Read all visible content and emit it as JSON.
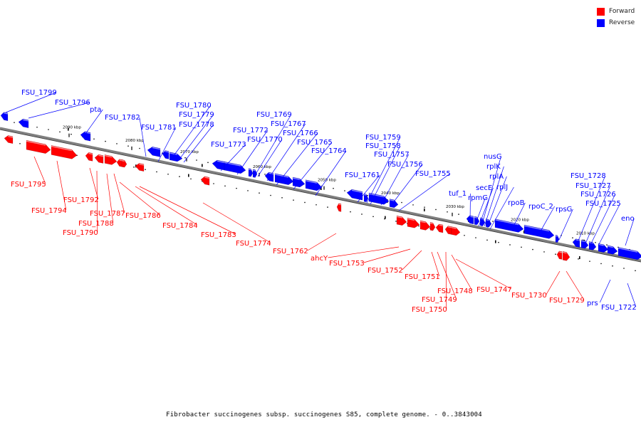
{
  "legend": {
    "forward_label": "Forward",
    "reverse_label": "Reverse",
    "forward_color": "#ff0000",
    "reverse_color": "#0000ff"
  },
  "caption": "Fibrobacter succinogenes subsp. succinogenes S85, complete genome. - 0..3843004",
  "colors": {
    "forward": "#ff0000",
    "reverse": "#0000ff",
    "backbone": "#808080"
  },
  "ticks": [
    "2090 kbp",
    "2080 kbp",
    "2070 kbp",
    "2060 kbp",
    "2050 kbp",
    "2040 kbp",
    "2030 kbp",
    "2020 kbp",
    "2010 kbp"
  ],
  "reverse_genes": [
    "FSU_1799",
    "FSU_1796",
    "pta",
    "FSU_1782",
    "FSU_1781",
    "FSU_1780",
    "FSU_1779",
    "FSU_1778",
    "FSU_1773",
    "FSU_1772",
    "FSU_1769",
    "FSU_1770",
    "FSU_1767",
    "FSU_1766",
    "FSU_1765",
    "FSU_1764",
    "FSU_1761",
    "FSU_1759",
    "FSU_1758",
    "FSU_1757",
    "FSU_1756",
    "FSU_1755",
    "tuf_1",
    "rpmG",
    "secE",
    "nusG",
    "rplK",
    "rplA",
    "rplJ",
    "rpoB",
    "rpoC_2",
    "rpsG",
    "FSU_1728",
    "FSU_1727",
    "FSU_1726",
    "FSU_1725",
    "eno",
    "prs",
    "FSU_1722"
  ],
  "forward_genes": [
    "FSU_1795",
    "FSU_1794",
    "FSU_1792",
    "FSU_1790",
    "FSU_1788",
    "FSU_1787",
    "FSU_1786",
    "FSU_1784",
    "FSU_1783",
    "FSU_1774",
    "FSU_1762",
    "ahcY",
    "FSU_1753",
    "FSU_1752",
    "FSU_1751",
    "FSU_1749",
    "FSU_1750",
    "FSU_1748",
    "FSU_1747",
    "FSU_1730",
    "FSU_1729"
  ]
}
